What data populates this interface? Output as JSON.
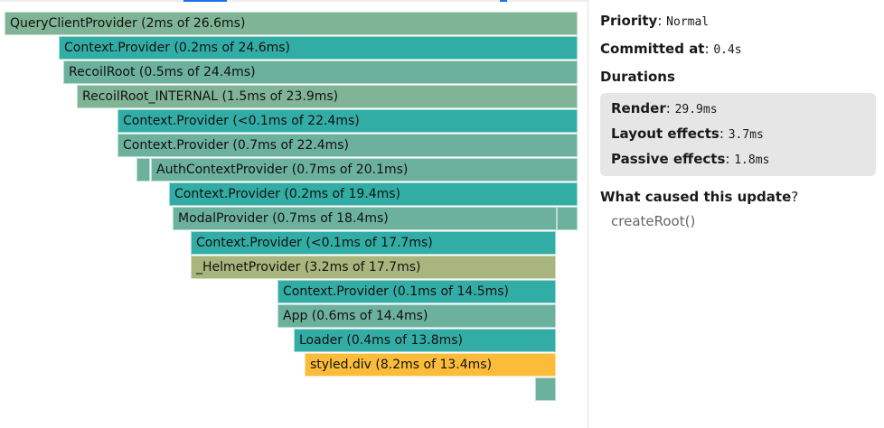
{
  "flamegraph": {
    "bars": [
      {
        "label": "QueryClientProvider (2ms of 26.6ms)",
        "color": "#7fb596"
      },
      {
        "label": "Context.Provider (0.2ms of 24.6ms)",
        "color": "#32ada6"
      },
      {
        "label": "RecoilRoot (0.5ms of 24.4ms)",
        "color": "#6cb19c"
      },
      {
        "label": "RecoilRoot_INTERNAL (1.5ms of 23.9ms)",
        "color": "#80b497"
      },
      {
        "label": "Context.Provider (<0.1ms of 22.4ms)",
        "color": "#32ada6"
      },
      {
        "label": "Context.Provider (0.7ms of 22.4ms)",
        "color": "#6cb19c"
      },
      {
        "label": "",
        "color": "#6cb19c"
      },
      {
        "label": "AuthContextProvider (0.7ms of 20.1ms)",
        "color": "#6cb19c"
      },
      {
        "label": "Context.Provider (0.2ms of 19.4ms)",
        "color": "#32ada6"
      },
      {
        "label": "ModalProvider (0.7ms of 18.4ms)",
        "color": "#6cb19c"
      },
      {
        "label": "",
        "color": "#6cb19c"
      },
      {
        "label": "Context.Provider (<0.1ms of 17.7ms)",
        "color": "#32ada6"
      },
      {
        "label": "_HelmetProvider (3.2ms of 17.7ms)",
        "color": "#a8b67d"
      },
      {
        "label": "Context.Provider (0.1ms of 14.5ms)",
        "color": "#32ada6"
      },
      {
        "label": "App (0.6ms of 14.4ms)",
        "color": "#6cb19c"
      },
      {
        "label": "Loader (0.4ms of 13.8ms)",
        "color": "#32ada6"
      },
      {
        "label": "styled.div (8.2ms of 13.4ms)",
        "color": "#fbbc3a"
      },
      {
        "label": "",
        "color": "#6cb19c"
      }
    ]
  },
  "sidebar": {
    "priority_label": "Priority",
    "priority_value": "Normal",
    "committed_label": "Committed at",
    "committed_value": "0.4s",
    "durations_heading": "Durations",
    "render_label": "Render",
    "render_value": "29.9ms",
    "layout_label": "Layout effects",
    "layout_value": "3.7ms",
    "passive_label": "Passive effects",
    "passive_value": "1.8ms",
    "cause_heading": "What caused this update",
    "cause_value": "createRoot()"
  },
  "punct": {
    "colon": ":",
    "question": "?"
  },
  "colors": {
    "tab_indicator": "#1a73e8"
  }
}
